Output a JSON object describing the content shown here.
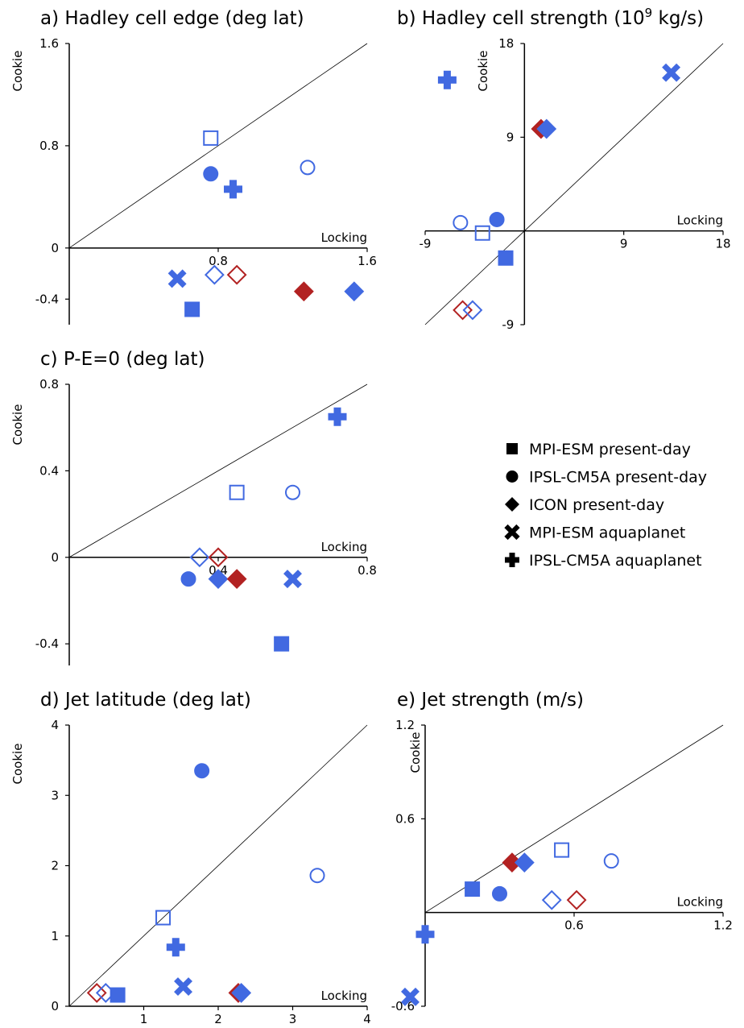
{
  "colors": {
    "blue": "#4169e1",
    "red": "#b22222",
    "axis": "#000000"
  },
  "legend": [
    {
      "marker": "square",
      "label": "MPI-ESM present-day"
    },
    {
      "marker": "circle",
      "label": "IPSL-CM5A present-day"
    },
    {
      "marker": "diamond",
      "label": "ICON present-day"
    },
    {
      "marker": "x",
      "label": "MPI-ESM aquaplanet"
    },
    {
      "marker": "plus",
      "label": "IPSL-CM5A aquaplanet"
    }
  ],
  "chart_data": [
    {
      "type": "scatter",
      "title": "a) Hadley cell edge (deg lat)",
      "xlabel": "Locking",
      "ylabel": "Cookie",
      "xlim": [
        0,
        1.6
      ],
      "ylim": [
        -0.6,
        1.6
      ],
      "xticks": [
        0.8,
        1.6
      ],
      "xtick_labels": [
        "0.8",
        "1.6"
      ],
      "yticks": [
        -0.4,
        0,
        0.8,
        1.6
      ],
      "ytick_labels": [
        "-0.4",
        "0",
        "0.8",
        "1.6"
      ],
      "points": [
        {
          "marker": "square",
          "filled": false,
          "color": "blue",
          "x": 0.76,
          "y": 0.86
        },
        {
          "marker": "circle",
          "filled": true,
          "color": "blue",
          "x": 0.76,
          "y": 0.58
        },
        {
          "marker": "plus",
          "filled": true,
          "color": "blue",
          "x": 0.88,
          "y": 0.46
        },
        {
          "marker": "circle",
          "filled": false,
          "color": "blue",
          "x": 1.28,
          "y": 0.63
        },
        {
          "marker": "x",
          "filled": true,
          "color": "blue",
          "x": 0.58,
          "y": -0.24
        },
        {
          "marker": "diamond",
          "filled": false,
          "color": "blue",
          "x": 0.78,
          "y": -0.21
        },
        {
          "marker": "diamond",
          "filled": false,
          "color": "red",
          "x": 0.9,
          "y": -0.21
        },
        {
          "marker": "diamond",
          "filled": true,
          "color": "red",
          "x": 1.26,
          "y": -0.34
        },
        {
          "marker": "diamond",
          "filled": true,
          "color": "blue",
          "x": 1.53,
          "y": -0.34
        },
        {
          "marker": "square",
          "filled": true,
          "color": "blue",
          "x": 0.66,
          "y": -0.48
        }
      ]
    },
    {
      "type": "scatter",
      "title": "b) Hadley cell strength (10",
      "title_sup": "9",
      "title_tail": " kg/s)",
      "xlabel": "Locking",
      "ylabel": "Cookie",
      "xlim": [
        -9,
        18
      ],
      "ylim": [
        -9,
        18
      ],
      "xticks": [
        -9,
        9,
        18
      ],
      "xtick_labels": [
        "-9",
        "9",
        "18"
      ],
      "yticks": [
        -9,
        9,
        18
      ],
      "ytick_labels": [
        "-9",
        "9",
        "18"
      ],
      "points": [
        {
          "marker": "plus",
          "filled": true,
          "color": "blue",
          "x": -7,
          "y": 14.5
        },
        {
          "marker": "x",
          "filled": true,
          "color": "blue",
          "x": 13.3,
          "y": 15.2
        },
        {
          "marker": "diamond",
          "filled": true,
          "color": "red",
          "x": 1.5,
          "y": 9.8
        },
        {
          "marker": "diamond",
          "filled": true,
          "color": "blue",
          "x": 2.0,
          "y": 9.8
        },
        {
          "marker": "circle",
          "filled": false,
          "color": "blue",
          "x": -5.8,
          "y": 0.8
        },
        {
          "marker": "circle",
          "filled": true,
          "color": "blue",
          "x": -2.5,
          "y": 1.1
        },
        {
          "marker": "square",
          "filled": false,
          "color": "blue",
          "x": -3.8,
          "y": -0.2
        },
        {
          "marker": "square",
          "filled": true,
          "color": "blue",
          "x": -1.7,
          "y": -2.6
        },
        {
          "marker": "diamond",
          "filled": false,
          "color": "red",
          "x": -5.6,
          "y": -7.6
        },
        {
          "marker": "diamond",
          "filled": false,
          "color": "blue",
          "x": -4.7,
          "y": -7.6
        }
      ]
    },
    {
      "type": "scatter",
      "title": "c) P-E=0 (deg lat)",
      "xlabel": "Locking",
      "ylabel": "Cookie",
      "xlim": [
        0,
        0.8
      ],
      "ylim": [
        -0.5,
        0.8
      ],
      "xticks": [
        0.4,
        0.8
      ],
      "xtick_labels": [
        "0.4",
        "0.8"
      ],
      "yticks": [
        -0.4,
        0,
        0.4,
        0.8
      ],
      "ytick_labels": [
        "-0.4",
        "0",
        "0.4",
        "0.8"
      ],
      "points": [
        {
          "marker": "plus",
          "filled": true,
          "color": "blue",
          "x": 0.72,
          "y": 0.65
        },
        {
          "marker": "square",
          "filled": false,
          "color": "blue",
          "x": 0.45,
          "y": 0.3
        },
        {
          "marker": "circle",
          "filled": false,
          "color": "blue",
          "x": 0.6,
          "y": 0.3
        },
        {
          "marker": "diamond",
          "filled": false,
          "color": "blue",
          "x": 0.35,
          "y": 0.0
        },
        {
          "marker": "diamond",
          "filled": false,
          "color": "red",
          "x": 0.4,
          "y": 0.0
        },
        {
          "marker": "circle",
          "filled": true,
          "color": "blue",
          "x": 0.32,
          "y": -0.1
        },
        {
          "marker": "diamond",
          "filled": true,
          "color": "blue",
          "x": 0.4,
          "y": -0.1
        },
        {
          "marker": "diamond",
          "filled": true,
          "color": "red",
          "x": 0.45,
          "y": -0.1
        },
        {
          "marker": "x",
          "filled": true,
          "color": "blue",
          "x": 0.6,
          "y": -0.1
        },
        {
          "marker": "square",
          "filled": true,
          "color": "blue",
          "x": 0.57,
          "y": -0.4
        }
      ]
    },
    {
      "type": "scatter",
      "title": "d) Jet latitude (deg lat)",
      "xlabel": "Locking",
      "ylabel": "Cookie",
      "xlim": [
        0,
        4
      ],
      "ylim": [
        0,
        4
      ],
      "xticks": [
        1,
        2,
        3,
        4
      ],
      "xtick_labels": [
        "1",
        "2",
        "3",
        "4"
      ],
      "yticks": [
        0,
        1,
        2,
        3,
        4
      ],
      "ytick_labels": [
        "0",
        "1",
        "2",
        "3",
        "4"
      ],
      "points": [
        {
          "marker": "circle",
          "filled": true,
          "color": "blue",
          "x": 1.78,
          "y": 3.35
        },
        {
          "marker": "circle",
          "filled": false,
          "color": "blue",
          "x": 3.33,
          "y": 1.86
        },
        {
          "marker": "square",
          "filled": false,
          "color": "blue",
          "x": 1.26,
          "y": 1.26
        },
        {
          "marker": "plus",
          "filled": true,
          "color": "blue",
          "x": 1.43,
          "y": 0.84
        },
        {
          "marker": "x",
          "filled": true,
          "color": "blue",
          "x": 1.53,
          "y": 0.28
        },
        {
          "marker": "diamond",
          "filled": false,
          "color": "red",
          "x": 0.37,
          "y": 0.19
        },
        {
          "marker": "diamond",
          "filled": false,
          "color": "blue",
          "x": 0.49,
          "y": 0.19
        },
        {
          "marker": "square",
          "filled": true,
          "color": "blue",
          "x": 0.65,
          "y": 0.16
        },
        {
          "marker": "diamond",
          "filled": true,
          "color": "red",
          "x": 2.27,
          "y": 0.19
        },
        {
          "marker": "diamond",
          "filled": true,
          "color": "blue",
          "x": 2.31,
          "y": 0.19
        }
      ]
    },
    {
      "type": "scatter",
      "title": "e) Jet strength (m/s)",
      "xlabel": "Locking",
      "ylabel": "Cookie",
      "xlim": [
        0,
        1.2
      ],
      "ylim": [
        -0.6,
        1.2
      ],
      "xticks": [
        0.6,
        1.2
      ],
      "xtick_labels": [
        "0.6",
        "1.2"
      ],
      "yticks": [
        -0.6,
        0.6,
        1.2
      ],
      "ytick_labels": [
        "-0.6",
        "0.6",
        "1.2"
      ],
      "points": [
        {
          "marker": "square",
          "filled": false,
          "color": "blue",
          "x": 0.55,
          "y": 0.4
        },
        {
          "marker": "circle",
          "filled": false,
          "color": "blue",
          "x": 0.75,
          "y": 0.33
        },
        {
          "marker": "diamond",
          "filled": true,
          "color": "red",
          "x": 0.35,
          "y": 0.32
        },
        {
          "marker": "diamond",
          "filled": true,
          "color": "blue",
          "x": 0.4,
          "y": 0.32
        },
        {
          "marker": "square",
          "filled": true,
          "color": "blue",
          "x": 0.19,
          "y": 0.15
        },
        {
          "marker": "circle",
          "filled": true,
          "color": "blue",
          "x": 0.3,
          "y": 0.12
        },
        {
          "marker": "diamond",
          "filled": false,
          "color": "blue",
          "x": 0.51,
          "y": 0.08
        },
        {
          "marker": "diamond",
          "filled": false,
          "color": "red",
          "x": 0.61,
          "y": 0.08
        },
        {
          "marker": "plus",
          "filled": true,
          "color": "blue",
          "x": 0.0,
          "y": -0.14
        },
        {
          "marker": "x",
          "filled": true,
          "color": "blue",
          "x": -0.06,
          "y": -0.54
        }
      ]
    }
  ]
}
